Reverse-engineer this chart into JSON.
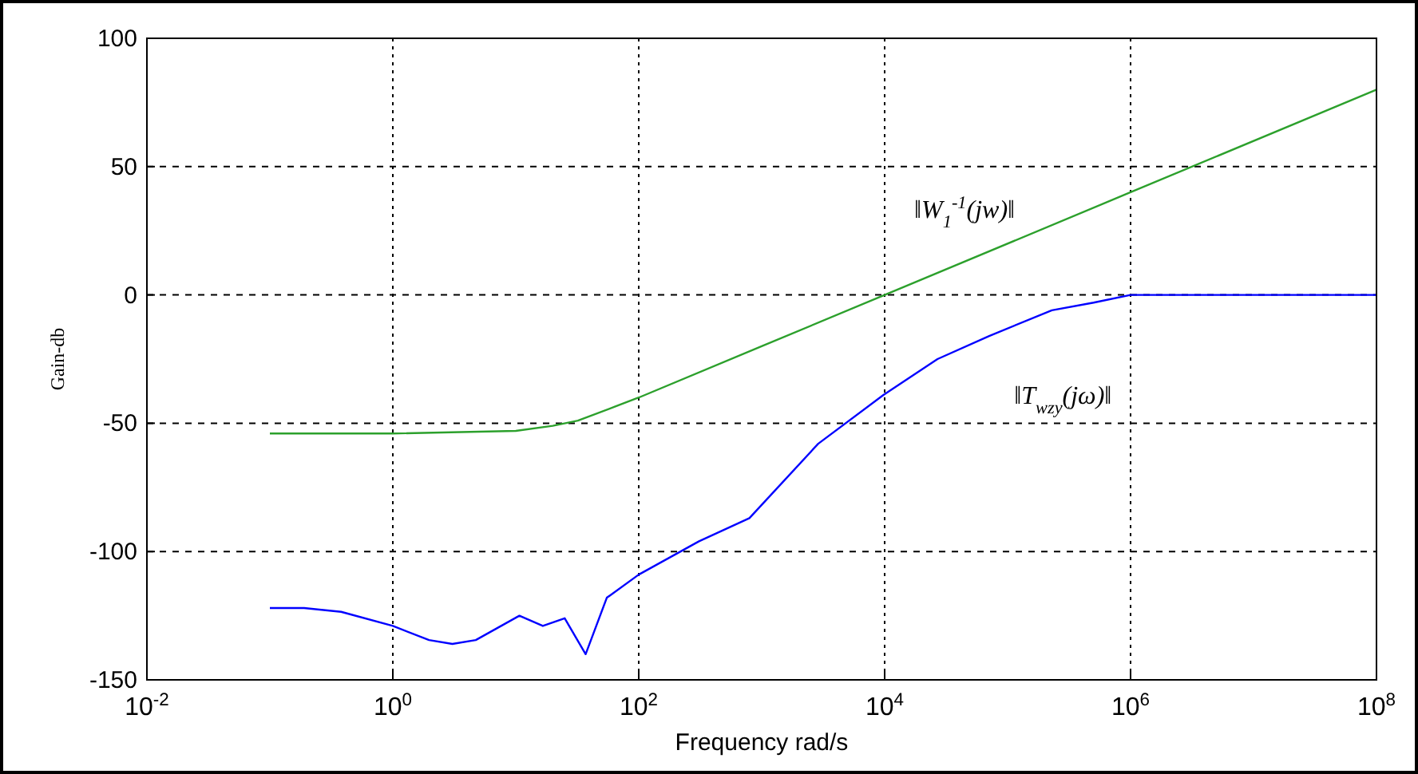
{
  "chart_data": {
    "type": "line",
    "xlabel": "Frequency rad/s",
    "ylabel": "Gain-db",
    "log": "x",
    "xlim": [
      0.01,
      100000000
    ],
    "ylim": [
      -150,
      100
    ],
    "xticks": [
      {
        "value": 0.01,
        "label": "10$^{-2}$"
      },
      {
        "value": 1,
        "label": "10$^{0}$"
      },
      {
        "value": 100,
        "label": "10$^{2}$"
      },
      {
        "value": 10000,
        "label": "10$^{4}$"
      },
      {
        "value": 1000000,
        "label": "10$^{6}$"
      },
      {
        "value": 100000000,
        "label": "10$^{8}$"
      }
    ],
    "yticks": [
      -150,
      -100,
      -50,
      0,
      50,
      100
    ],
    "grid": true,
    "line_style": "solid",
    "marker": "none",
    "series": [
      {
        "color": "#2ca02c",
        "x": [
          0.1,
          1,
          10,
          20,
          32,
          100,
          1000,
          10000,
          1000000,
          100000000
        ],
        "values": [
          -54,
          -54,
          -53,
          -51,
          -49,
          -40,
          -20,
          0,
          40,
          80
        ]
      },
      {
        "color": "#0000ff",
        "x": [
          0.1,
          0.19,
          0.38,
          1,
          1.97,
          3.05,
          4.73,
          10.7,
          16.6,
          25,
          37,
          55,
          100,
          309,
          794,
          2880,
          9770,
          26900,
          70800,
          229000,
          501000,
          1000000,
          1780000,
          100000000
        ],
        "values": [
          -122,
          -122,
          -123.5,
          -129,
          -134.5,
          -136,
          -134.5,
          -125,
          -129,
          -126,
          -140,
          -118,
          -109,
          -96,
          -87,
          -58,
          -39,
          -25,
          -16,
          -6,
          -3,
          0,
          0,
          0
        ]
      }
    ],
    "annotations": [
      "‖W$_{1}$$^{-1}$(jw)‖",
      "‖T$_{wzy}$(jω)‖"
    ]
  }
}
